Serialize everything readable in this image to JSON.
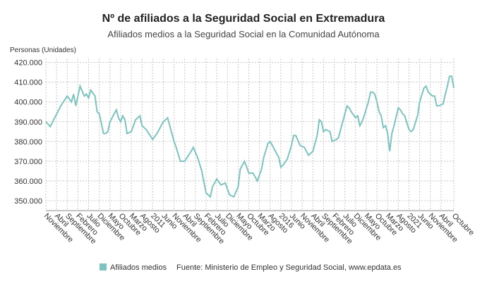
{
  "chart_data": {
    "type": "line",
    "title": "Nº de afiliados a la Seguridad Social en Extremadura",
    "subtitle": "Afiliados medios a la Seguridad Social en la Comunidad Autónoma",
    "y_axis_label": "Personas (Unidades)",
    "source": "Fuente: Ministerio de Empleo y Seguridad Social, www.epdata.es",
    "categories": [
      "Noviembre",
      null,
      null,
      null,
      null,
      "Abril",
      null,
      null,
      null,
      null,
      "Septiembre",
      null,
      null,
      null,
      null,
      "Febrero",
      null,
      null,
      null,
      null,
      "Julio",
      null,
      null,
      null,
      null,
      "Diciembre",
      null,
      null,
      null,
      null,
      "Mayo",
      null,
      null,
      null,
      null,
      "Octubre",
      null,
      null,
      null,
      null,
      "Marzo",
      null,
      null,
      null,
      null,
      "Agosto",
      null,
      null,
      null,
      null,
      "2011",
      null,
      null,
      null,
      null,
      "Junio",
      null,
      null,
      null,
      null,
      "Noviembre",
      null,
      null,
      null,
      null,
      "Abril",
      null,
      null,
      null,
      null,
      "Septiembre",
      null,
      null,
      null,
      null,
      "Febrero",
      null,
      null,
      null,
      null,
      "Julio",
      null,
      null,
      null,
      null,
      "Diciembre",
      null,
      null,
      null,
      null,
      "Mayo",
      null,
      null,
      null,
      null,
      "Octubre",
      null,
      null,
      null,
      null,
      "Marzo",
      null,
      null,
      null,
      null,
      "Agosto",
      null,
      null,
      null,
      null,
      "2016",
      null,
      null,
      null,
      null,
      "Junio",
      null,
      null,
      null,
      null,
      "Noviembre",
      null,
      null,
      null,
      null,
      "Abril",
      null,
      null,
      null,
      null,
      "Septiembre",
      null,
      null,
      null,
      null,
      "Febrero",
      null,
      null,
      null,
      null,
      "Julio",
      null,
      null,
      null,
      null,
      "Diciembre",
      null,
      null,
      null,
      null,
      "Mayo",
      null,
      null,
      null,
      null,
      "Octubre",
      null,
      null,
      null,
      null,
      "Marzo",
      null,
      null,
      null,
      null,
      "Agosto",
      null,
      null,
      null,
      null,
      "2021",
      null,
      null,
      null,
      null,
      "Junio",
      null,
      null,
      null,
      null,
      "Noviembre",
      null,
      null,
      null,
      null,
      "Abril",
      null,
      null,
      null,
      null,
      null,
      "Octubre"
    ],
    "series": [
      {
        "name": "Afiliados medios",
        "color": "#7cc4bf",
        "values": [
          390000,
          388800,
          387500,
          389600,
          391700,
          393800,
          395900,
          398000,
          399700,
          401300,
          403000,
          401500,
          400000,
          404000,
          398000,
          403000,
          408000,
          405500,
          403000,
          404000,
          402000,
          406000,
          404500,
          403000,
          395000,
          394000,
          389000,
          384000,
          384000,
          385000,
          390000,
          392000,
          394000,
          396000,
          392000,
          390000,
          393000,
          391000,
          384000,
          384500,
          385000,
          388000,
          391000,
          392000,
          393000,
          388000,
          387000,
          386000,
          384300,
          382700,
          381000,
          382500,
          384000,
          386000,
          388000,
          390000,
          391000,
          392000,
          388000,
          384000,
          380000,
          377000,
          373500,
          370000,
          370000,
          370000,
          371700,
          373300,
          375000,
          377000,
          374500,
          372000,
          368500,
          365000,
          359500,
          354000,
          353000,
          352000,
          357000,
          359000,
          361000,
          359500,
          358000,
          358500,
          359000,
          356000,
          353000,
          352500,
          352000,
          354500,
          357000,
          366000,
          368000,
          370000,
          367000,
          364000,
          364000,
          364000,
          362000,
          360000,
          363000,
          366000,
          372000,
          375500,
          379000,
          380000,
          378000,
          376000,
          374000,
          372000,
          367000,
          368000,
          369500,
          371000,
          374500,
          378000,
          383000,
          383000,
          380500,
          378000,
          377500,
          377000,
          375000,
          373000,
          374000,
          375000,
          379000,
          383000,
          391000,
          390000,
          385000,
          386000,
          385500,
          385000,
          380000,
          380500,
          381000,
          382000,
          386000,
          390000,
          394000,
          398000,
          397000,
          395000,
          393500,
          392000,
          393000,
          388000,
          390000,
          393000,
          396500,
          400000,
          405000,
          405000,
          404000,
          400000,
          395000,
          393000,
          387000,
          388000,
          384000,
          375000,
          384000,
          388000,
          392500,
          397000,
          396000,
          394000,
          393000,
          389500,
          386000,
          385000,
          386000,
          389500,
          393000,
          400000,
          403500,
          407000,
          408000,
          405000,
          404000,
          403000,
          403000,
          398000,
          398000,
          398500,
          399000,
          404000,
          408000,
          413000,
          413000,
          407000
        ]
      }
    ],
    "ylim": [
      345000,
      422000
    ],
    "yticks": [
      {
        "value": 350000,
        "label": "350.000"
      },
      {
        "value": 360000,
        "label": "360.000"
      },
      {
        "value": 370000,
        "label": "370.000"
      },
      {
        "value": 380000,
        "label": "380.000"
      },
      {
        "value": 390000,
        "label": "390.000"
      },
      {
        "value": 400000,
        "label": "400.000"
      },
      {
        "value": 410000,
        "label": "410.000"
      },
      {
        "value": 420000,
        "label": "420.000"
      }
    ],
    "grid": true
  }
}
